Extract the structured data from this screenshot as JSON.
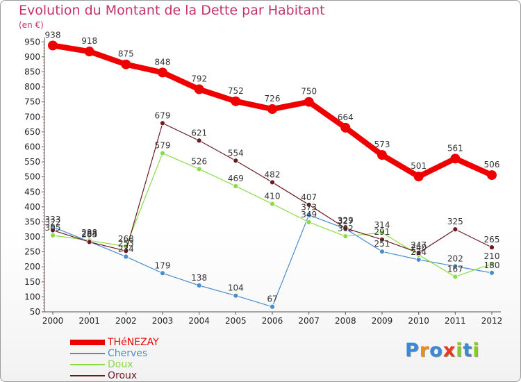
{
  "chart_data": {
    "type": "line",
    "title": "Evolution du Montant de la Dette par Habitant",
    "unit_label": "(en €)",
    "x": [
      "2000",
      "2001",
      "2002",
      "2003",
      "2004",
      "2005",
      "2006",
      "2007",
      "2008",
      "2009",
      "2010",
      "2011",
      "2012"
    ],
    "ylim": [
      50,
      960
    ],
    "yticks": [
      50,
      100,
      150,
      200,
      250,
      300,
      350,
      400,
      450,
      500,
      550,
      600,
      650,
      700,
      750,
      800,
      850,
      900,
      950
    ],
    "grid": false,
    "legend_position": "bottom-left",
    "series": [
      {
        "name": "THéNEZAY",
        "color": "#ee0000",
        "width": 8,
        "marker": 7,
        "values": [
          938,
          918,
          875,
          848,
          792,
          752,
          726,
          750,
          664,
          573,
          501,
          561,
          506
        ]
      },
      {
        "name": "Cherves",
        "color": "#4a8ccc",
        "width": 1.2,
        "marker": 3.5,
        "values": [
          333,
          284,
          234,
          179,
          138,
          104,
          67,
          373,
          327,
          251,
          224,
          202,
          180
        ]
      },
      {
        "name": "Doux",
        "color": "#88dd44",
        "width": 1.2,
        "marker": 3.5,
        "values": [
          305,
          288,
          268,
          579,
          526,
          469,
          410,
          349,
          302,
          314,
          240,
          167,
          210
        ]
      },
      {
        "name": "Oroux",
        "color": "#6a1a22",
        "width": 1.2,
        "marker": 3.5,
        "values": [
          322,
          283,
          253,
          679,
          621,
          554,
          482,
          407,
          329,
          291,
          247,
          325,
          265
        ]
      }
    ]
  },
  "brand": {
    "letters": [
      "P",
      "r",
      "o",
      "x",
      "i",
      "t",
      "i"
    ],
    "colors": [
      "#3a88d8",
      "#f08c1a",
      "#3a88d8",
      "#e83a1a",
      "#88cc22",
      "#3a88d8",
      "#88cc22"
    ]
  }
}
